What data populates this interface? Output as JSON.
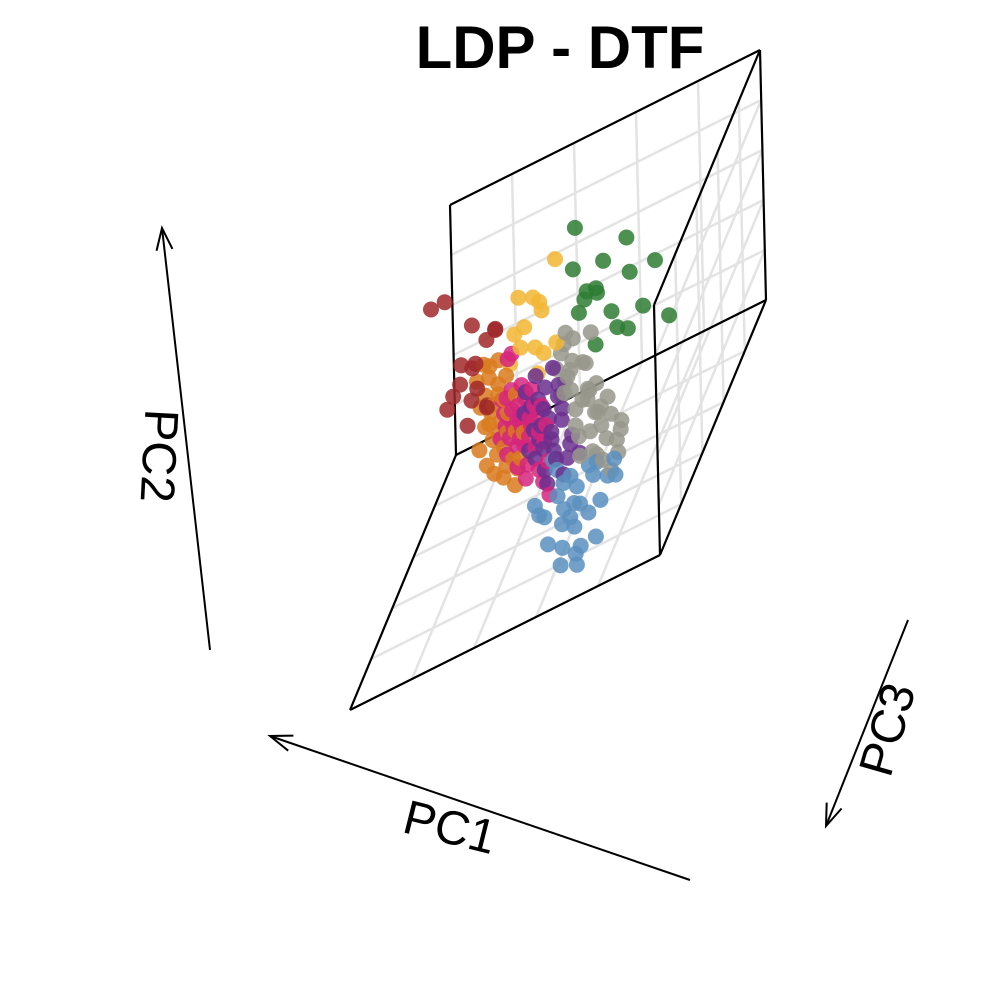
{
  "chart_data": {
    "type": "scatter",
    "title": "LDP - DTF",
    "xlabel": "PC1",
    "ylabel": "PC2",
    "zlabel": "PC3",
    "projection": "3d",
    "grid": true,
    "legend": "none",
    "series": [
      {
        "color": "#2e7d32",
        "points": [
          [
            -0.82,
            0.92,
            0.46
          ],
          [
            -0.6,
            0.8,
            0.3
          ],
          [
            -0.52,
            0.94,
            0.12
          ],
          [
            -0.28,
            0.72,
            0.18
          ],
          [
            -0.46,
            0.52,
            0.25
          ],
          [
            -0.68,
            0.48,
            0.3
          ],
          [
            -0.3,
            0.62,
            0.07
          ],
          [
            -0.12,
            0.78,
            -0.03
          ],
          [
            -0.58,
            0.36,
            0.3
          ],
          [
            -0.48,
            0.34,
            0.21
          ],
          [
            -0.2,
            0.52,
            0.0
          ],
          [
            -0.4,
            0.92,
            0.21
          ],
          [
            -0.88,
            0.38,
            0.4
          ],
          [
            -0.12,
            0.34,
            -0.12
          ],
          [
            -0.05,
            0.9,
            -0.28
          ],
          [
            -0.3,
            0.2,
            0.1
          ],
          [
            -0.36,
            0.7,
            0.22
          ]
        ]
      },
      {
        "color": "#f2b632",
        "points": [
          [
            0.2,
            0.58,
            -0.2
          ],
          [
            0.3,
            0.62,
            -0.22
          ],
          [
            0.14,
            0.46,
            -0.18
          ],
          [
            0.26,
            0.38,
            -0.2
          ],
          [
            0.36,
            0.28,
            -0.3
          ],
          [
            0.2,
            0.16,
            -0.22
          ],
          [
            0.3,
            0.2,
            -0.24
          ],
          [
            0.42,
            0.0,
            -0.38
          ],
          [
            0.14,
            0.1,
            -0.2
          ],
          [
            0.18,
            -0.04,
            -0.2
          ],
          [
            0.06,
            0.78,
            -0.22
          ],
          [
            0.0,
            0.26,
            -0.04
          ],
          [
            0.16,
            0.52,
            -0.2
          ]
        ]
      },
      {
        "color": "#a0282a",
        "points": [
          [
            0.48,
            0.4,
            -0.3
          ],
          [
            0.56,
            0.3,
            -0.36
          ],
          [
            0.7,
            0.36,
            -0.5
          ],
          [
            0.92,
            0.54,
            -0.64
          ],
          [
            0.98,
            0.6,
            -0.56
          ],
          [
            0.64,
            0.14,
            -0.38
          ],
          [
            0.74,
            -0.06,
            -0.6
          ],
          [
            0.64,
            -0.08,
            -0.4
          ],
          [
            0.7,
            -0.2,
            -0.46
          ],
          [
            0.82,
            -0.14,
            -0.6
          ],
          [
            0.88,
            -0.24,
            -0.64
          ],
          [
            0.56,
            -0.22,
            -0.34
          ],
          [
            0.46,
            0.44,
            -0.24
          ],
          [
            0.76,
            0.12,
            -0.46
          ],
          [
            0.6,
            -0.3,
            -0.46
          ],
          [
            0.7,
            -0.32,
            -0.38
          ],
          [
            0.92,
            -0.32,
            -0.64
          ]
        ]
      },
      {
        "color": "#97968c",
        "points": [
          [
            -0.3,
            0.38,
            0.18
          ],
          [
            -0.12,
            0.26,
            0.0
          ],
          [
            -0.04,
            0.2,
            -0.06
          ],
          [
            -0.02,
            0.14,
            -0.06
          ],
          [
            -0.2,
            0.08,
            0.06
          ],
          [
            -0.12,
            0.1,
            0.02
          ],
          [
            -0.28,
            -0.04,
            0.2
          ],
          [
            -0.08,
            -0.02,
            0.0
          ],
          [
            -0.04,
            -0.18,
            -0.05
          ],
          [
            -0.44,
            -0.1,
            0.3
          ],
          [
            -0.48,
            -0.2,
            0.36
          ],
          [
            -0.34,
            -0.26,
            0.2
          ],
          [
            -0.54,
            -0.36,
            0.36
          ],
          [
            -0.42,
            -0.44,
            0.28
          ],
          [
            -0.28,
            -0.4,
            0.18
          ],
          [
            -0.22,
            -0.54,
            0.2
          ],
          [
            -0.4,
            -0.58,
            0.3
          ],
          [
            -0.46,
            -0.68,
            0.32
          ],
          [
            -0.2,
            -0.2,
            0.08
          ],
          [
            -0.1,
            0.02,
            0.0
          ],
          [
            0.02,
            0.02,
            -0.08
          ],
          [
            -0.26,
            -0.12,
            0.12
          ],
          [
            -0.16,
            -0.36,
            0.1
          ],
          [
            -0.34,
            -0.56,
            0.24
          ],
          [
            -0.5,
            -0.46,
            0.32
          ],
          [
            -0.3,
            -0.3,
            0.14
          ],
          [
            -0.14,
            -0.28,
            0.04
          ],
          [
            -0.04,
            -0.1,
            -0.06
          ],
          [
            -0.24,
            -0.2,
            0.1
          ],
          [
            -0.36,
            -0.38,
            0.2
          ],
          [
            -0.18,
            -0.46,
            0.1
          ],
          [
            -0.28,
            -0.6,
            0.14
          ],
          [
            -0.1,
            -0.14,
            0.0
          ],
          [
            -0.56,
            -0.26,
            0.4
          ],
          [
            -0.38,
            -0.18,
            0.26
          ],
          [
            -0.5,
            -0.58,
            0.3
          ],
          [
            -0.06,
            0.3,
            -0.04
          ],
          [
            0.0,
            -0.22,
            -0.1
          ],
          [
            -0.22,
            0.06,
            0.06
          ],
          [
            -0.32,
            -0.06,
            0.16
          ]
        ]
      },
      {
        "color": "#5b8fbe",
        "points": [
          [
            -0.48,
            -0.6,
            0.32
          ],
          [
            -0.5,
            -0.7,
            0.36
          ],
          [
            -0.42,
            -0.74,
            0.28
          ],
          [
            -0.3,
            -0.74,
            0.2
          ],
          [
            -0.26,
            -0.68,
            0.16
          ],
          [
            -0.18,
            -0.8,
            0.16
          ],
          [
            -0.12,
            -0.74,
            0.1
          ],
          [
            -0.06,
            -0.8,
            0.06
          ],
          [
            -0.08,
            -0.96,
            0.12
          ],
          [
            -0.14,
            -1.0,
            0.18
          ],
          [
            -0.22,
            -0.9,
            0.22
          ],
          [
            -0.3,
            -0.94,
            0.3
          ],
          [
            -0.38,
            -1.08,
            0.4
          ],
          [
            -0.26,
            -1.14,
            0.34
          ],
          [
            -0.22,
            -1.2,
            0.32
          ],
          [
            -0.1,
            -1.18,
            0.22
          ],
          [
            0.02,
            -1.16,
            0.14
          ],
          [
            -0.1,
            -1.28,
            0.26
          ],
          [
            -0.24,
            -1.26,
            0.36
          ],
          [
            -0.08,
            -1.04,
            0.16
          ],
          [
            0.06,
            -0.98,
            0.08
          ],
          [
            0.14,
            -0.9,
            0.02
          ],
          [
            0.1,
            -0.96,
            0.06
          ],
          [
            0.0,
            -0.72,
            0.0
          ],
          [
            -0.4,
            -0.84,
            0.36
          ],
          [
            -0.34,
            -0.62,
            0.24
          ],
          [
            0.04,
            -0.66,
            -0.04
          ],
          [
            -0.02,
            -0.88,
            0.06
          ],
          [
            -0.18,
            -1.06,
            0.22
          ],
          [
            -0.16,
            -0.92,
            0.16
          ]
        ]
      },
      {
        "color": "#6a2f8e",
        "points": [
          [
            0.04,
            0.04,
            -0.08
          ],
          [
            0.1,
            -0.1,
            -0.1
          ],
          [
            0.02,
            -0.22,
            -0.1
          ],
          [
            0.12,
            -0.28,
            -0.12
          ],
          [
            0.0,
            -0.42,
            -0.1
          ],
          [
            0.06,
            -0.52,
            -0.08
          ],
          [
            0.16,
            -0.52,
            -0.14
          ],
          [
            -0.08,
            -0.58,
            -0.02
          ],
          [
            -0.16,
            -0.64,
            0.04
          ],
          [
            -0.1,
            -0.5,
            0.0
          ],
          [
            0.02,
            -0.66,
            -0.04
          ],
          [
            0.1,
            -0.72,
            -0.06
          ],
          [
            0.04,
            -0.6,
            -0.06
          ],
          [
            0.14,
            -0.4,
            -0.12
          ],
          [
            0.22,
            -0.26,
            -0.18
          ],
          [
            0.26,
            -0.14,
            -0.2
          ],
          [
            0.08,
            -0.36,
            -0.1
          ],
          [
            -0.02,
            -0.3,
            -0.06
          ],
          [
            0.18,
            -0.64,
            -0.12
          ],
          [
            -0.04,
            -0.78,
            0.0
          ],
          [
            0.08,
            -0.82,
            -0.04
          ],
          [
            0.2,
            -0.44,
            -0.16
          ],
          [
            0.16,
            -0.2,
            -0.14
          ],
          [
            0.06,
            -0.46,
            -0.08
          ],
          [
            -0.06,
            -0.68,
            -0.02
          ],
          [
            0.24,
            -0.6,
            -0.18
          ],
          [
            0.12,
            -0.58,
            -0.1
          ],
          [
            0.0,
            -0.1,
            -0.06
          ],
          [
            0.28,
            -0.32,
            -0.22
          ],
          [
            0.18,
            -0.02,
            -0.16
          ]
        ]
      },
      {
        "color": "#d6247c",
        "points": [
          [
            0.38,
            0.14,
            -0.3
          ],
          [
            0.42,
            0.08,
            -0.34
          ],
          [
            0.3,
            -0.1,
            -0.24
          ],
          [
            0.2,
            -0.26,
            -0.18
          ],
          [
            0.28,
            -0.22,
            -0.24
          ],
          [
            0.34,
            -0.28,
            -0.28
          ],
          [
            0.4,
            -0.34,
            -0.34
          ],
          [
            0.44,
            -0.24,
            -0.36
          ],
          [
            0.36,
            -0.42,
            -0.32
          ],
          [
            0.3,
            -0.38,
            -0.26
          ],
          [
            0.24,
            -0.44,
            -0.22
          ],
          [
            0.18,
            -0.34,
            -0.16
          ],
          [
            0.14,
            -0.26,
            -0.14
          ],
          [
            0.26,
            -0.54,
            -0.24
          ],
          [
            0.34,
            -0.56,
            -0.3
          ],
          [
            0.4,
            -0.5,
            -0.36
          ],
          [
            0.48,
            -0.4,
            -0.42
          ],
          [
            0.5,
            -0.3,
            -0.44
          ],
          [
            0.44,
            -0.6,
            -0.4
          ],
          [
            0.38,
            -0.66,
            -0.36
          ],
          [
            0.2,
            -0.6,
            -0.18
          ],
          [
            0.12,
            -0.54,
            -0.12
          ],
          [
            0.08,
            -0.66,
            -0.06
          ],
          [
            0.16,
            -0.74,
            -0.12
          ],
          [
            0.26,
            -0.72,
            -0.2
          ],
          [
            0.36,
            -0.78,
            -0.3
          ],
          [
            0.46,
            -0.72,
            -0.4
          ],
          [
            0.3,
            -0.6,
            -0.26
          ],
          [
            0.22,
            -0.14,
            -0.2
          ],
          [
            0.32,
            -0.46,
            -0.28
          ],
          [
            0.06,
            -0.9,
            -0.02
          ],
          [
            0.12,
            -0.82,
            -0.08
          ],
          [
            0.42,
            -0.46,
            -0.38
          ],
          [
            0.24,
            -0.36,
            -0.2
          ],
          [
            0.16,
            -0.46,
            -0.14
          ],
          [
            0.4,
            -0.18,
            -0.34
          ],
          [
            0.48,
            -0.52,
            -0.44
          ],
          [
            0.28,
            -0.84,
            -0.22
          ],
          [
            0.52,
            -0.62,
            -0.46
          ],
          [
            0.1,
            -0.4,
            -0.1
          ]
        ]
      },
      {
        "color": "#d97a1e",
        "points": [
          [
            0.5,
            0.06,
            -0.4
          ],
          [
            0.58,
            0.0,
            -0.46
          ],
          [
            0.6,
            -0.12,
            -0.5
          ],
          [
            0.52,
            -0.16,
            -0.44
          ],
          [
            0.46,
            -0.26,
            -0.38
          ],
          [
            0.56,
            -0.32,
            -0.46
          ],
          [
            0.64,
            -0.28,
            -0.54
          ],
          [
            0.6,
            -0.42,
            -0.52
          ],
          [
            0.52,
            -0.48,
            -0.46
          ],
          [
            0.46,
            -0.56,
            -0.42
          ],
          [
            0.54,
            -0.58,
            -0.48
          ],
          [
            0.6,
            -0.66,
            -0.54
          ],
          [
            0.5,
            -0.7,
            -0.46
          ],
          [
            0.42,
            -0.78,
            -0.4
          ],
          [
            0.38,
            -0.84,
            -0.36
          ],
          [
            0.48,
            -0.84,
            -0.44
          ],
          [
            0.56,
            -0.76,
            -0.5
          ],
          [
            0.66,
            -0.56,
            -0.58
          ],
          [
            0.7,
            -0.42,
            -0.62
          ],
          [
            0.72,
            -0.2,
            -0.62
          ],
          [
            0.66,
            -0.06,
            -0.58
          ],
          [
            0.44,
            -0.06,
            -0.36
          ],
          [
            0.36,
            -0.2,
            -0.3
          ],
          [
            0.3,
            -0.5,
            -0.26
          ],
          [
            0.34,
            -0.72,
            -0.3
          ],
          [
            0.58,
            -0.9,
            -0.5
          ],
          [
            0.64,
            -0.84,
            -0.54
          ],
          [
            0.44,
            -0.38,
            -0.38
          ],
          [
            0.52,
            -0.24,
            -0.44
          ],
          [
            0.62,
            -0.52,
            -0.54
          ],
          [
            0.38,
            -0.52,
            -0.34
          ],
          [
            0.5,
            -0.92,
            -0.44
          ],
          [
            0.7,
            -0.72,
            -0.58
          ],
          [
            0.4,
            -0.96,
            -0.36
          ]
        ]
      }
    ]
  }
}
